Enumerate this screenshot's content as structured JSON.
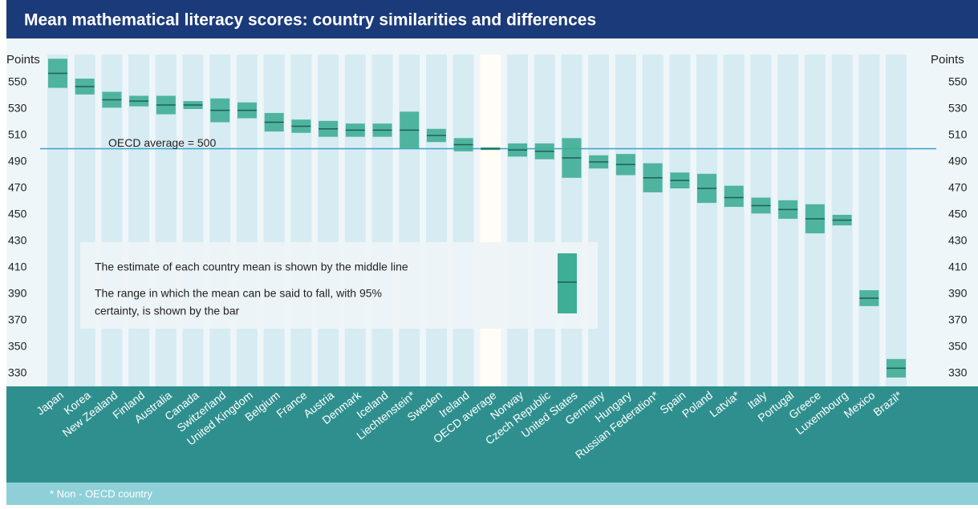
{
  "chart_data": {
    "type": "range",
    "title": "Mean mathematical literacy scores: country similarities and differences",
    "y_label": "Points",
    "annotation": "OECD average = 500",
    "reference_line": 500,
    "legend_text": [
      "The estimate of each country mean is shown by the middle line",
      "The range in which the mean can be said to fall, with 95%",
      "certainty, is shown by the bar"
    ],
    "footnote": "* Non - OECD country",
    "color": "#3fae96",
    "categories": [
      "Japan",
      "Korea",
      "New Zealand",
      "Finland",
      "Australia",
      "Canada",
      "Switzerland",
      "United Kingdom",
      "Belgium",
      "France",
      "Austria",
      "Denmark",
      "Iceland",
      "Liechtenstein*",
      "Sweden",
      "Ireland",
      "OECD average",
      "Norway",
      "Czech Republic",
      "United States",
      "Germany",
      "Hungary",
      "Russian Federation*",
      "Spain",
      "Poland",
      "Latvia*",
      "Italy",
      "Portugal",
      "Greece",
      "Luxembourg",
      "Mexico",
      "Brazil*"
    ],
    "low": [
      546,
      541,
      531,
      532,
      526,
      530,
      520,
      523,
      513,
      512,
      509,
      509,
      509,
      500,
      505,
      498,
      499,
      494,
      492,
      478,
      485,
      480,
      467,
      470,
      459,
      456,
      451,
      447,
      436,
      442,
      381,
      327
    ],
    "high": [
      568,
      553,
      543,
      540,
      540,
      536,
      538,
      535,
      527,
      522,
      521,
      519,
      519,
      528,
      515,
      508,
      501,
      504,
      504,
      508,
      495,
      496,
      489,
      482,
      481,
      472,
      463,
      461,
      458,
      450,
      393,
      341
    ],
    "mean": [
      557,
      547,
      537,
      536,
      533,
      533,
      529,
      529,
      520,
      517,
      515,
      514,
      514,
      514,
      510,
      503,
      500,
      499,
      498,
      493,
      490,
      488,
      478,
      476,
      470,
      463,
      457,
      454,
      447,
      446,
      387,
      334
    ],
    "ylim": [
      320,
      570
    ],
    "yticks": [
      330,
      350,
      370,
      390,
      410,
      430,
      450,
      470,
      490,
      510,
      530,
      550
    ],
    "grid": false
  }
}
